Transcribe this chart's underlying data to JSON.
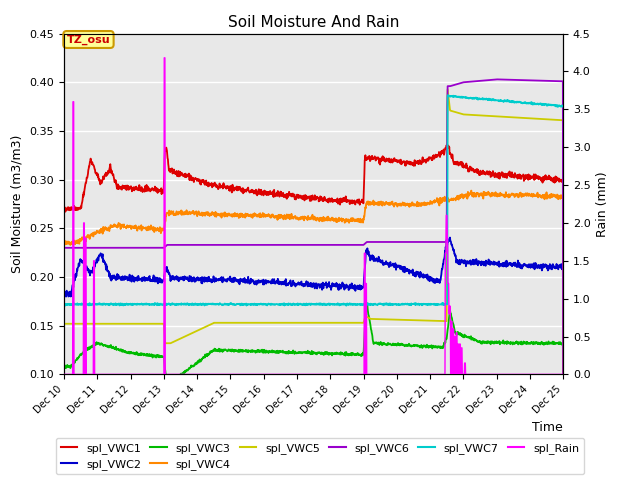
{
  "title": "Soil Moisture And Rain",
  "xlabel": "Time",
  "ylabel_left": "Soil Moisture (m3/m3)",
  "ylabel_right": "Rain (mm)",
  "x_start": 10,
  "x_end": 25,
  "ylim_left": [
    0.1,
    0.45
  ],
  "ylim_right": [
    0.0,
    4.5
  ],
  "x_ticks": [
    10,
    11,
    12,
    13,
    14,
    15,
    16,
    17,
    18,
    19,
    20,
    21,
    22,
    23,
    24,
    25
  ],
  "x_tick_labels": [
    "Dec 10",
    "Dec 11",
    "Dec 12",
    "Dec 13",
    "Dec 14",
    "Dec 15",
    "Dec 16",
    "Dec 17",
    "Dec 18",
    "Dec 19",
    "Dec 20",
    "Dec 21",
    "Dec 22",
    "Dec 23",
    "Dec 24",
    "Dec 25"
  ],
  "annotation_text": "TZ_osu",
  "annotation_color": "#cc0000",
  "annotation_bg": "#ffff99",
  "annotation_border": "#cc9900",
  "series_colors": {
    "VWC1": "#dd0000",
    "VWC2": "#0000cc",
    "VWC3": "#00bb00",
    "VWC4": "#ff8800",
    "VWC5": "#cccc00",
    "VWC6": "#9900cc",
    "VWC7": "#00cccc",
    "Rain": "#ff00ff"
  },
  "legend_labels": [
    "spl_VWC1",
    "spl_VWC2",
    "spl_VWC3",
    "spl_VWC4",
    "spl_VWC5",
    "spl_VWC6",
    "spl_VWC7",
    "spl_Rain"
  ],
  "legend_colors": [
    "#dd0000",
    "#0000cc",
    "#00bb00",
    "#ff8800",
    "#cccc00",
    "#9900cc",
    "#00cccc",
    "#ff00ff"
  ]
}
